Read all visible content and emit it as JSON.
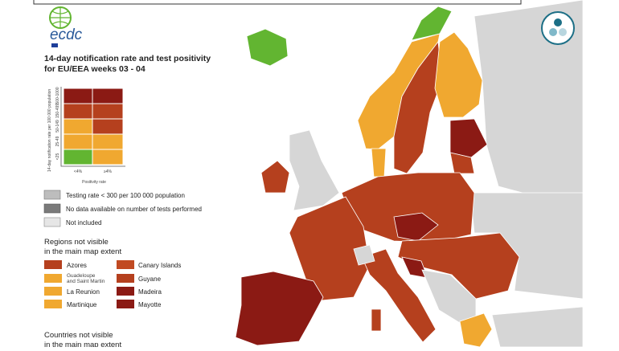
{
  "logo": {
    "text": "ecdc"
  },
  "title": {
    "line1": "14-day notification rate and test positivity",
    "line2": "for EU/EEA weeks 03 - 04"
  },
  "matrix": {
    "y_label": "14-day notification rate per 100 000 population",
    "row_labels": [
      "500-1000",
      "150-499",
      "50-149",
      "25-49",
      "<25"
    ],
    "col_labels": [
      "<4%",
      "≥4%"
    ],
    "x_label": "Positivity rate"
  },
  "legend": [
    "Testing rate < 300 per 100 000 population",
    "No data available on number of tests performed",
    "Not included"
  ],
  "regions": {
    "heading": [
      "Regions not visible",
      "in the main map extent"
    ],
    "items": [
      "Azores",
      "Canary Islands",
      "Guadeloupe and Saint Martin",
      "Guyane",
      "La Reunion",
      "Madeira",
      "Martinique",
      "Mayotte"
    ]
  },
  "countries": {
    "heading": [
      "Countries not visible",
      "in the main map extent"
    ]
  }
}
